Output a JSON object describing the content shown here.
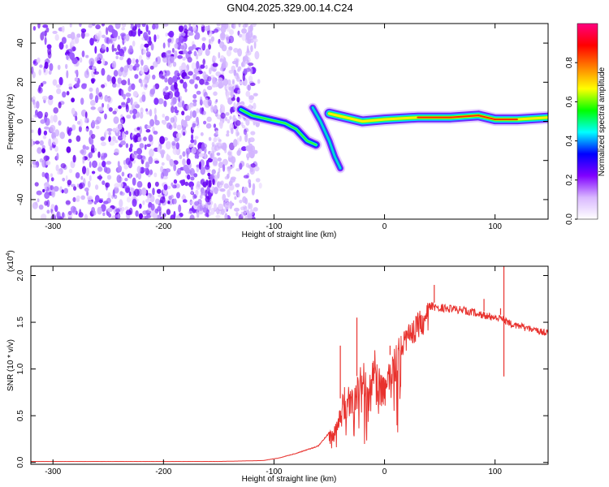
{
  "chart_data": [
    {
      "type": "heatmap",
      "title": "GN04.2025.329.00.14.C24",
      "xlabel": "Height of straight line (km)",
      "ylabel": "Frequency (Hz)",
      "xlim": [
        -320,
        148
      ],
      "ylim": [
        -50,
        50
      ],
      "xticks": [
        -300,
        -200,
        -100,
        0,
        100
      ],
      "yticks": [
        -40,
        -20,
        0,
        20,
        40
      ],
      "colorbar": {
        "label": "Normalized spectral amplitude",
        "range": [
          0.0,
          1.0
        ],
        "ticks": [
          "0.0",
          "0.2",
          "0.4",
          "0.6",
          "0.8"
        ],
        "tick_values": [
          0.0,
          0.2,
          0.4,
          0.6,
          0.8
        ],
        "stops": [
          "#ffffff",
          "#d9b8ff",
          "#8000ff",
          "#0000ff",
          "#00ffff",
          "#00ff00",
          "#ffff00",
          "#ff8000",
          "#ff0000",
          "#ff0080"
        ]
      },
      "features": {
        "noise_region_x": [
          -320,
          -115
        ],
        "noise_region_y": [
          -50,
          50
        ],
        "main_trace": [
          {
            "x": -130,
            "y": 6
          },
          {
            "x": -120,
            "y": 3
          },
          {
            "x": -105,
            "y": 1
          },
          {
            "x": -90,
            "y": -1
          },
          {
            "x": -80,
            "y": -4
          },
          {
            "x": -70,
            "y": -10
          },
          {
            "x": -62,
            "y": -12
          }
        ],
        "secondary_trace": [
          {
            "x": -65,
            "y": 7
          },
          {
            "x": -58,
            "y": 0
          },
          {
            "x": -50,
            "y": -10
          },
          {
            "x": -45,
            "y": -18
          },
          {
            "x": -40,
            "y": -24
          }
        ],
        "steady_trace": [
          {
            "x": -50,
            "y": 4
          },
          {
            "x": -20,
            "y": 0
          },
          {
            "x": 0,
            "y": 1
          },
          {
            "x": 30,
            "y": 2
          },
          {
            "x": 60,
            "y": 2
          },
          {
            "x": 85,
            "y": 3
          },
          {
            "x": 100,
            "y": 1
          },
          {
            "x": 120,
            "y": 1
          },
          {
            "x": 148,
            "y": 2
          }
        ]
      }
    },
    {
      "type": "line",
      "xlabel": "Height of straight line (km)",
      "ylabel": "SNR (10 * v/v)",
      "y_multiplier": "(x10",
      "y_multiplier_exp": "4",
      "y_multiplier_close": ")",
      "xlim": [
        -320,
        148
      ],
      "ylim": [
        -0.02,
        2.1
      ],
      "xticks": [
        -300,
        -200,
        -100,
        0,
        100
      ],
      "yticks": [
        "0.0",
        "0.5",
        "1.0",
        "1.5",
        "2.0"
      ],
      "ytick_values": [
        0.0,
        0.5,
        1.0,
        1.5,
        2.0
      ],
      "color": "#e8322e",
      "envelope": [
        {
          "x": -320,
          "y": 0.01
        },
        {
          "x": -150,
          "y": 0.01
        },
        {
          "x": -110,
          "y": 0.02
        },
        {
          "x": -95,
          "y": 0.05
        },
        {
          "x": -80,
          "y": 0.1
        },
        {
          "x": -60,
          "y": 0.18
        },
        {
          "x": -45,
          "y": 0.4
        },
        {
          "x": -38,
          "y": 0.8
        },
        {
          "x": -30,
          "y": 0.9
        },
        {
          "x": -20,
          "y": 0.95
        },
        {
          "x": -10,
          "y": 1.1
        },
        {
          "x": 0,
          "y": 1.05
        },
        {
          "x": 10,
          "y": 1.25
        },
        {
          "x": 20,
          "y": 1.45
        },
        {
          "x": 30,
          "y": 1.6
        },
        {
          "x": 40,
          "y": 1.72
        },
        {
          "x": 50,
          "y": 1.7
        },
        {
          "x": 65,
          "y": 1.68
        },
        {
          "x": 80,
          "y": 1.65
        },
        {
          "x": 95,
          "y": 1.6
        },
        {
          "x": 105,
          "y": 1.58
        },
        {
          "x": 115,
          "y": 1.52
        },
        {
          "x": 130,
          "y": 1.47
        },
        {
          "x": 148,
          "y": 1.42
        }
      ],
      "spikes": [
        {
          "x": -40,
          "y": 1.25
        },
        {
          "x": -25,
          "y": 1.55
        },
        {
          "x": 5,
          "y": 1.25
        },
        {
          "x": 45,
          "y": 1.9
        },
        {
          "x": 90,
          "y": 1.75
        },
        {
          "x": 105,
          "y": 1.65
        },
        {
          "x": 108,
          "y": 2.1
        },
        {
          "x": 108,
          "y": 0.92
        }
      ]
    }
  ]
}
